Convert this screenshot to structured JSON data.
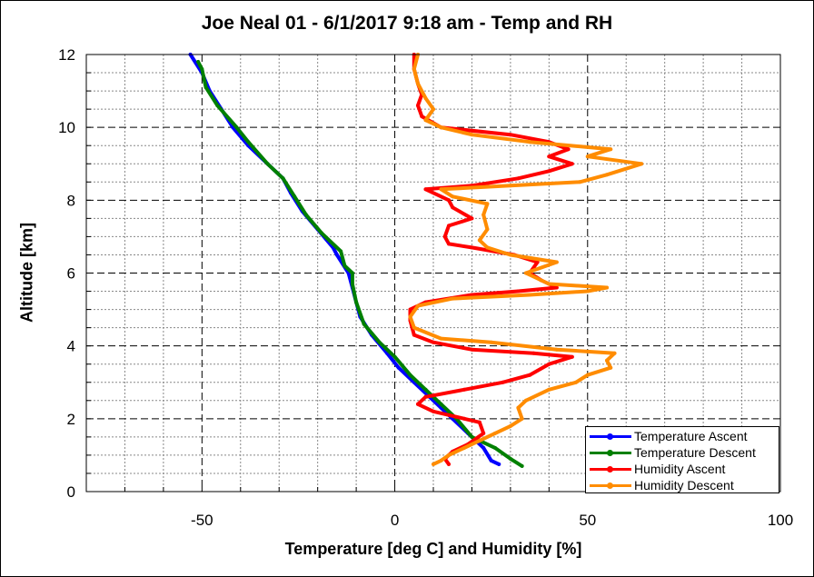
{
  "chart_data": {
    "type": "line",
    "title": "Joe Neal 01 - 6/1/2017 9:18 am - Temp and RH",
    "xlabel": "Temperature [deg C] and Humidity [%]",
    "ylabel": "Altitude [km]",
    "xlim": [
      -80,
      100
    ],
    "ylim": [
      0,
      12
    ],
    "x_ticks": [
      -50,
      0,
      50,
      100
    ],
    "y_ticks": [
      0,
      2,
      4,
      6,
      8,
      10,
      12
    ],
    "grid": true,
    "legend_position": "bottom-right",
    "series": [
      {
        "name": "Temperature Ascent",
        "color": "#0000ff",
        "points": [
          [
            27,
            0.75
          ],
          [
            25,
            0.85
          ],
          [
            23,
            1.2
          ],
          [
            19,
            1.6
          ],
          [
            15,
            2.0
          ],
          [
            12,
            2.3
          ],
          [
            9,
            2.6
          ],
          [
            5,
            3.0
          ],
          [
            1,
            3.4
          ],
          [
            -2,
            3.8
          ],
          [
            -6,
            4.3
          ],
          [
            -9,
            4.8
          ],
          [
            -10,
            5.2
          ],
          [
            -11,
            5.6
          ],
          [
            -12,
            6.0
          ],
          [
            -15,
            6.5
          ],
          [
            -16,
            6.7
          ],
          [
            -20,
            7.2
          ],
          [
            -24,
            7.7
          ],
          [
            -27,
            8.2
          ],
          [
            -29,
            8.6
          ],
          [
            -33,
            9.0
          ],
          [
            -38,
            9.5
          ],
          [
            -42,
            10.0
          ],
          [
            -45,
            10.5
          ],
          [
            -48,
            11.0
          ],
          [
            -50,
            11.5
          ],
          [
            -53,
            12.0
          ]
        ]
      },
      {
        "name": "Temperature Descent",
        "color": "#008000",
        "points": [
          [
            33,
            0.7
          ],
          [
            30,
            0.9
          ],
          [
            26,
            1.2
          ],
          [
            20,
            1.5
          ],
          [
            16,
            2.0
          ],
          [
            12,
            2.4
          ],
          [
            8,
            2.8
          ],
          [
            4,
            3.2
          ],
          [
            0,
            3.7
          ],
          [
            -4,
            4.1
          ],
          [
            -8,
            4.6
          ],
          [
            -10,
            5.2
          ],
          [
            -11,
            5.7
          ],
          [
            -11,
            6.0
          ],
          [
            -13,
            6.2
          ],
          [
            -14,
            6.6
          ],
          [
            -19,
            7.1
          ],
          [
            -23,
            7.6
          ],
          [
            -26,
            8.1
          ],
          [
            -29,
            8.6
          ],
          [
            -33,
            9.0
          ],
          [
            -38,
            9.6
          ],
          [
            -41,
            10.0
          ],
          [
            -46,
            10.6
          ],
          [
            -49,
            11.1
          ],
          [
            -50,
            11.6
          ],
          [
            -51,
            11.8
          ]
        ]
      },
      {
        "name": "Humidity Ascent",
        "color": "#ff0000",
        "points": [
          [
            14,
            0.75
          ],
          [
            13,
            0.9
          ],
          [
            15,
            1.1
          ],
          [
            19,
            1.3
          ],
          [
            23,
            1.6
          ],
          [
            22,
            1.9
          ],
          [
            18,
            2.0
          ],
          [
            10,
            2.2
          ],
          [
            6,
            2.4
          ],
          [
            8,
            2.6
          ],
          [
            18,
            2.8
          ],
          [
            28,
            3.0
          ],
          [
            35,
            3.2
          ],
          [
            40,
            3.5
          ],
          [
            46,
            3.7
          ],
          [
            36,
            3.8
          ],
          [
            20,
            3.9
          ],
          [
            10,
            4.1
          ],
          [
            5,
            4.3
          ],
          [
            4,
            4.7
          ],
          [
            4,
            5.0
          ],
          [
            8,
            5.2
          ],
          [
            20,
            5.4
          ],
          [
            32,
            5.5
          ],
          [
            42,
            5.6
          ],
          [
            38,
            5.8
          ],
          [
            35,
            6.0
          ],
          [
            37,
            6.3
          ],
          [
            31,
            6.5
          ],
          [
            20,
            6.7
          ],
          [
            14,
            6.8
          ],
          [
            13,
            7.0
          ],
          [
            14,
            7.3
          ],
          [
            20,
            7.5
          ],
          [
            15,
            7.8
          ],
          [
            14,
            8.0
          ],
          [
            8,
            8.3
          ],
          [
            20,
            8.4
          ],
          [
            32,
            8.6
          ],
          [
            40,
            8.8
          ],
          [
            46,
            9.0
          ],
          [
            40,
            9.2
          ],
          [
            45,
            9.4
          ],
          [
            40,
            9.6
          ],
          [
            30,
            9.8
          ],
          [
            12,
            10.0
          ],
          [
            7,
            10.3
          ],
          [
            6,
            10.6
          ],
          [
            7,
            10.9
          ],
          [
            6,
            11.2
          ],
          [
            5,
            11.6
          ],
          [
            5,
            12.0
          ]
        ]
      },
      {
        "name": "Humidity Descent",
        "color": "#ff8c00",
        "points": [
          [
            10,
            0.75
          ],
          [
            12,
            0.85
          ],
          [
            14,
            1.0
          ],
          [
            18,
            1.2
          ],
          [
            22,
            1.4
          ],
          [
            26,
            1.6
          ],
          [
            30,
            1.8
          ],
          [
            33,
            2.0
          ],
          [
            32,
            2.3
          ],
          [
            34,
            2.5
          ],
          [
            40,
            2.8
          ],
          [
            47,
            3.0
          ],
          [
            50,
            3.2
          ],
          [
            56,
            3.4
          ],
          [
            55,
            3.6
          ],
          [
            57,
            3.8
          ],
          [
            42,
            3.9
          ],
          [
            25,
            4.1
          ],
          [
            12,
            4.2
          ],
          [
            5,
            4.5
          ],
          [
            4,
            4.8
          ],
          [
            6,
            5.1
          ],
          [
            15,
            5.3
          ],
          [
            35,
            5.4
          ],
          [
            50,
            5.5
          ],
          [
            55,
            5.6
          ],
          [
            40,
            5.7
          ],
          [
            34,
            6.0
          ],
          [
            42,
            6.3
          ],
          [
            30,
            6.5
          ],
          [
            24,
            6.7
          ],
          [
            22,
            6.9
          ],
          [
            24,
            7.2
          ],
          [
            23,
            7.6
          ],
          [
            24,
            7.9
          ],
          [
            15,
            8.1
          ],
          [
            12,
            8.3
          ],
          [
            30,
            8.4
          ],
          [
            48,
            8.5
          ],
          [
            55,
            8.7
          ],
          [
            64,
            9.0
          ],
          [
            50,
            9.2
          ],
          [
            56,
            9.4
          ],
          [
            35,
            9.6
          ],
          [
            20,
            9.8
          ],
          [
            12,
            10.0
          ],
          [
            8,
            10.2
          ],
          [
            10,
            10.5
          ],
          [
            8,
            10.8
          ],
          [
            6,
            11.2
          ],
          [
            5,
            11.6
          ],
          [
            6,
            12.0
          ]
        ]
      }
    ]
  }
}
